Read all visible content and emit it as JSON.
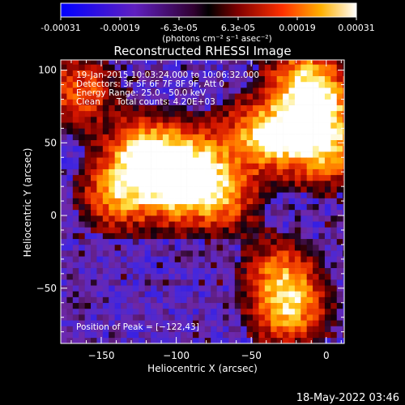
{
  "colorbar": {
    "ticks": [
      "-0.00031",
      "-0.00019",
      "-6.3e-05",
      "6.3e-05",
      "0.00019",
      "0.00031"
    ],
    "unit_label": "(photons cm⁻² s⁻¹ asec⁻²)"
  },
  "chart_data": {
    "type": "heatmap",
    "title": "Reconstructed RHESSI Image",
    "xlabel": "Heliocentric X (arcsec)",
    "ylabel": "Heliocentric Y (arcsec)",
    "xlim": [
      -177,
      12
    ],
    "ylim": [
      -88,
      107
    ],
    "xticks": [
      -150,
      -100,
      -50,
      0
    ],
    "yticks": [
      -50,
      0,
      50,
      100
    ],
    "xtick_labels": [
      "−150",
      "−100",
      "−50",
      "0"
    ],
    "ytick_labels": [
      "−50",
      "0",
      "50",
      "100"
    ],
    "info_lines": [
      "19-Jan-2015 10:03:24.000 to 10:06:32.000",
      "Detectors: 3F 5F 6F 7F 8F 9F, Att 0",
      "Energy Range: 25.0 - 50.0 keV",
      "Clean      Total counts: 4.20E+03"
    ],
    "peak_label": "Position of Peak = [−122,43]",
    "peak": [
      -122,
      43
    ],
    "hot_regions": [
      {
        "x": -122,
        "y": 43,
        "level": 1.0
      },
      {
        "x": -100,
        "y": 18,
        "level": 0.9
      },
      {
        "x": -138,
        "y": 15,
        "level": 0.8
      },
      {
        "x": -70,
        "y": 15,
        "level": 0.75
      },
      {
        "x": -90,
        "y": 40,
        "level": 0.7
      },
      {
        "x": -30,
        "y": 55,
        "level": 0.8
      },
      {
        "x": -5,
        "y": 75,
        "level": 0.85
      },
      {
        "x": 0,
        "y": 45,
        "level": 0.8
      },
      {
        "x": -25,
        "y": -65,
        "level": 0.8
      },
      {
        "x": -15,
        "y": 95,
        "level": 0.7
      },
      {
        "x": -165,
        "y": 85,
        "level": 0.6
      },
      {
        "x": -50,
        "y": 55,
        "level": 0.5
      },
      {
        "x": -30,
        "y": -40,
        "level": 0.6
      }
    ]
  },
  "timestamp": "18-May-2022 03:46"
}
